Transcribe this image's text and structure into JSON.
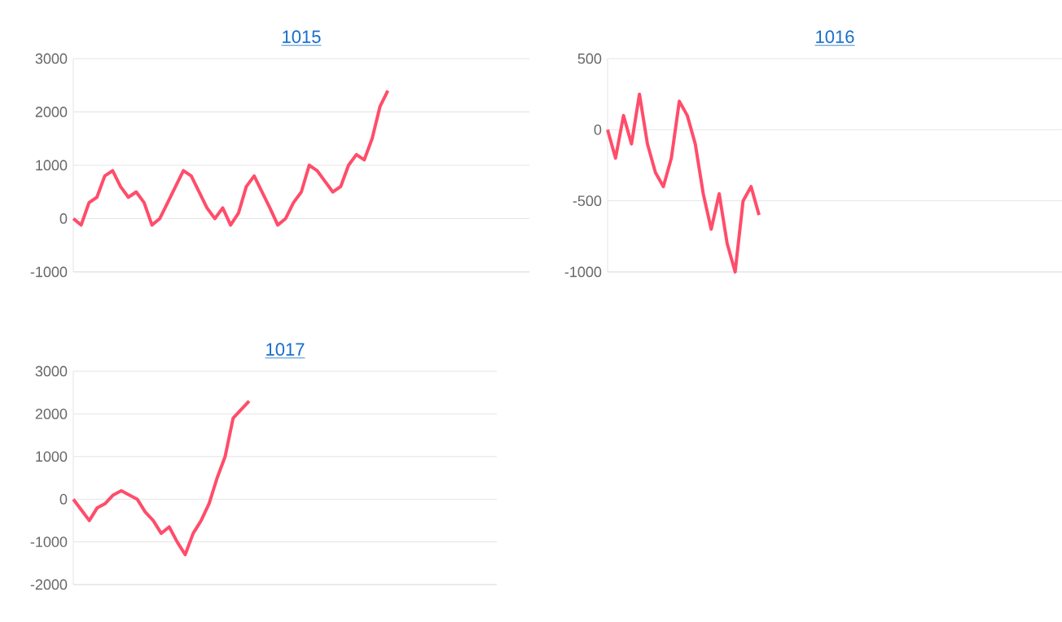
{
  "chart_data": [
    {
      "type": "line",
      "title": "1015",
      "categories": [
        null,
        null,
        null,
        null,
        null,
        null,
        null,
        null,
        null,
        null,
        null,
        null,
        null,
        null,
        null,
        null,
        null,
        null,
        null,
        null,
        null,
        null,
        null,
        null,
        null,
        null,
        null,
        null,
        null,
        null,
        null,
        null,
        null,
        null,
        null,
        null,
        null,
        null,
        null,
        null,
        null,
        null,
        null,
        null,
        null,
        null,
        null,
        null,
        null,
        null,
        null,
        null,
        null,
        null,
        null,
        null,
        null,
        null,
        null
      ],
      "series": [
        {
          "color": "#ff4d6a",
          "values": [
            0,
            -120,
            300,
            400,
            800,
            900,
            600,
            400,
            500,
            300,
            -120,
            0,
            300,
            600,
            900,
            800,
            500,
            200,
            0,
            200,
            -120,
            100,
            600,
            800,
            500,
            200,
            -120,
            0,
            300,
            500,
            1000,
            900,
            700,
            500,
            600,
            1000,
            1200,
            1100,
            1500,
            2100,
            2400,
            null,
            null,
            null,
            null,
            null,
            null,
            null,
            null,
            null,
            null,
            null,
            null,
            null,
            null,
            null,
            null,
            null,
            null
          ]
        }
      ],
      "ylim": [
        -1000,
        3000
      ],
      "yticks": [
        -1000,
        0,
        1000,
        2000,
        3000
      ],
      "grid": "y",
      "tick_labels": "y"
    },
    {
      "type": "line",
      "title": "1016",
      "categories": [
        null,
        null,
        null,
        null,
        null,
        null,
        null,
        null,
        null,
        null,
        null,
        null,
        null,
        null,
        null,
        null,
        null,
        null,
        null,
        null,
        null,
        null,
        null,
        null,
        null,
        null,
        null,
        null,
        null,
        null,
        null,
        null,
        null,
        null,
        null,
        null,
        null,
        null,
        null,
        null,
        null,
        null,
        null,
        null,
        null,
        null,
        null,
        null,
        null,
        null,
        null,
        null,
        null,
        null,
        null,
        null,
        null,
        null
      ],
      "series": [
        {
          "color": "#ff4d6a",
          "values": [
            0,
            -200,
            100,
            -100,
            250,
            -100,
            -300,
            -400,
            -200,
            200,
            100,
            -100,
            -450,
            -700,
            -450,
            -800,
            -1000,
            -500,
            -400,
            -600,
            null,
            null,
            null,
            null,
            null,
            null,
            null,
            null,
            null,
            null,
            null,
            null,
            null,
            null,
            null,
            null,
            null,
            null,
            null,
            null,
            null,
            null,
            null,
            null,
            null,
            null,
            null,
            null,
            null,
            null,
            null,
            null,
            null,
            null,
            null,
            null,
            null,
            null
          ]
        }
      ],
      "ylim": [
        -1000,
        500
      ],
      "yticks": [
        -1000,
        -500,
        0,
        500
      ],
      "grid": "y",
      "tick_labels": "y"
    },
    {
      "type": "line",
      "title": "1017",
      "categories": [
        null,
        null,
        null,
        null,
        null,
        null,
        null,
        null,
        null,
        null,
        null,
        null,
        null,
        null,
        null,
        null,
        null,
        null,
        null,
        null,
        null,
        null,
        null,
        null,
        null,
        null,
        null,
        null,
        null,
        null,
        null,
        null,
        null,
        null,
        null,
        null,
        null,
        null,
        null,
        null,
        null,
        null,
        null,
        null,
        null,
        null,
        null,
        null,
        null,
        null,
        null,
        null,
        null,
        null
      ],
      "series": [
        {
          "color": "#ff4d6a",
          "values": [
            0,
            -250,
            -500,
            -200,
            -100,
            100,
            200,
            100,
            0,
            -300,
            -500,
            -800,
            -650,
            -1000,
            -1300,
            -800,
            -500,
            -100,
            500,
            1000,
            1900,
            2100,
            2300,
            null,
            null,
            null,
            null,
            null,
            null,
            null,
            null,
            null,
            null,
            null,
            null,
            null,
            null,
            null,
            null,
            null,
            null,
            null,
            null,
            null,
            null,
            null,
            null,
            null,
            null,
            null,
            null,
            null,
            null,
            null
          ]
        }
      ],
      "ylim": [
        -2000,
        3000
      ],
      "yticks": [
        -2000,
        -1000,
        0,
        1000,
        2000,
        3000
      ],
      "grid": "y",
      "tick_labels": "y"
    }
  ]
}
